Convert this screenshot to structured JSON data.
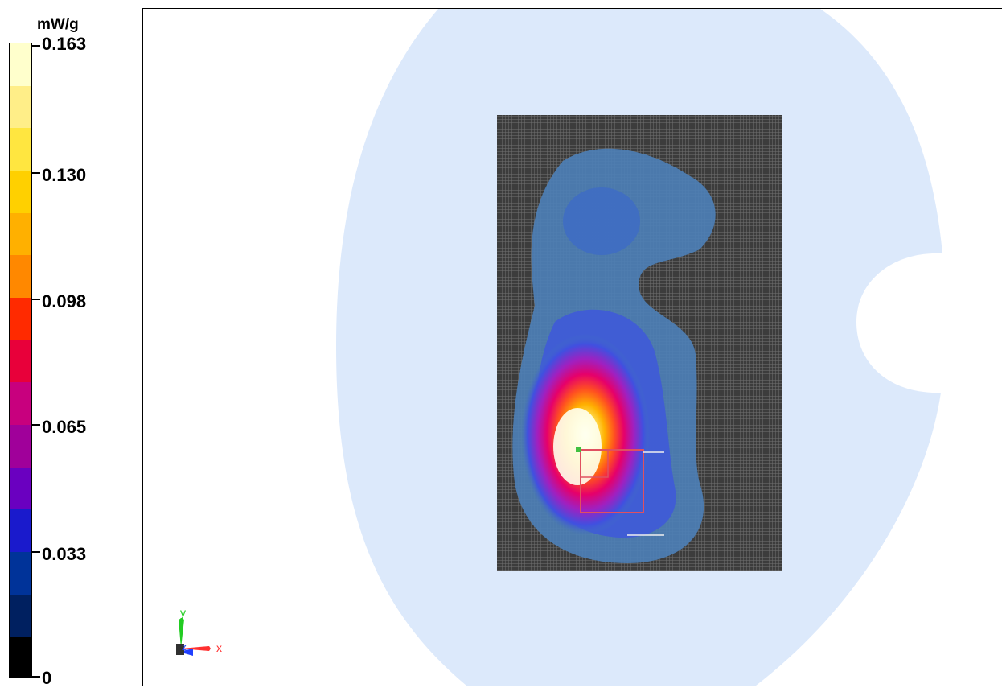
{
  "chart_data": {
    "type": "heatmap",
    "unit": "mW/g",
    "colorbar": {
      "min": 0,
      "max": 0.163,
      "tick_labels": [
        "0.163",
        "0.130",
        "0.098",
        "0.065",
        "0.033",
        "0"
      ],
      "tick_values": [
        0.163,
        0.13,
        0.098,
        0.065,
        0.033,
        0
      ],
      "colors_top_to_bottom": [
        "#ffffcc",
        "#ffee88",
        "#ffe640",
        "#ffd000",
        "#ffb000",
        "#ff8800",
        "#ff2a00",
        "#e8003a",
        "#c8007e",
        "#a0009a",
        "#6a00c0",
        "#1a1acc",
        "#003399",
        "#002060",
        "#000000"
      ]
    },
    "field": {
      "peak_value": 0.163,
      "background_color": "#dce9fb",
      "scan_area_color": "#3c3c3c"
    },
    "axes": {
      "x_label": "x",
      "y_label": "y",
      "z_label": "z",
      "x_color": "#ff3030",
      "y_color": "#22cc22",
      "z_color": "#2040ff"
    }
  }
}
